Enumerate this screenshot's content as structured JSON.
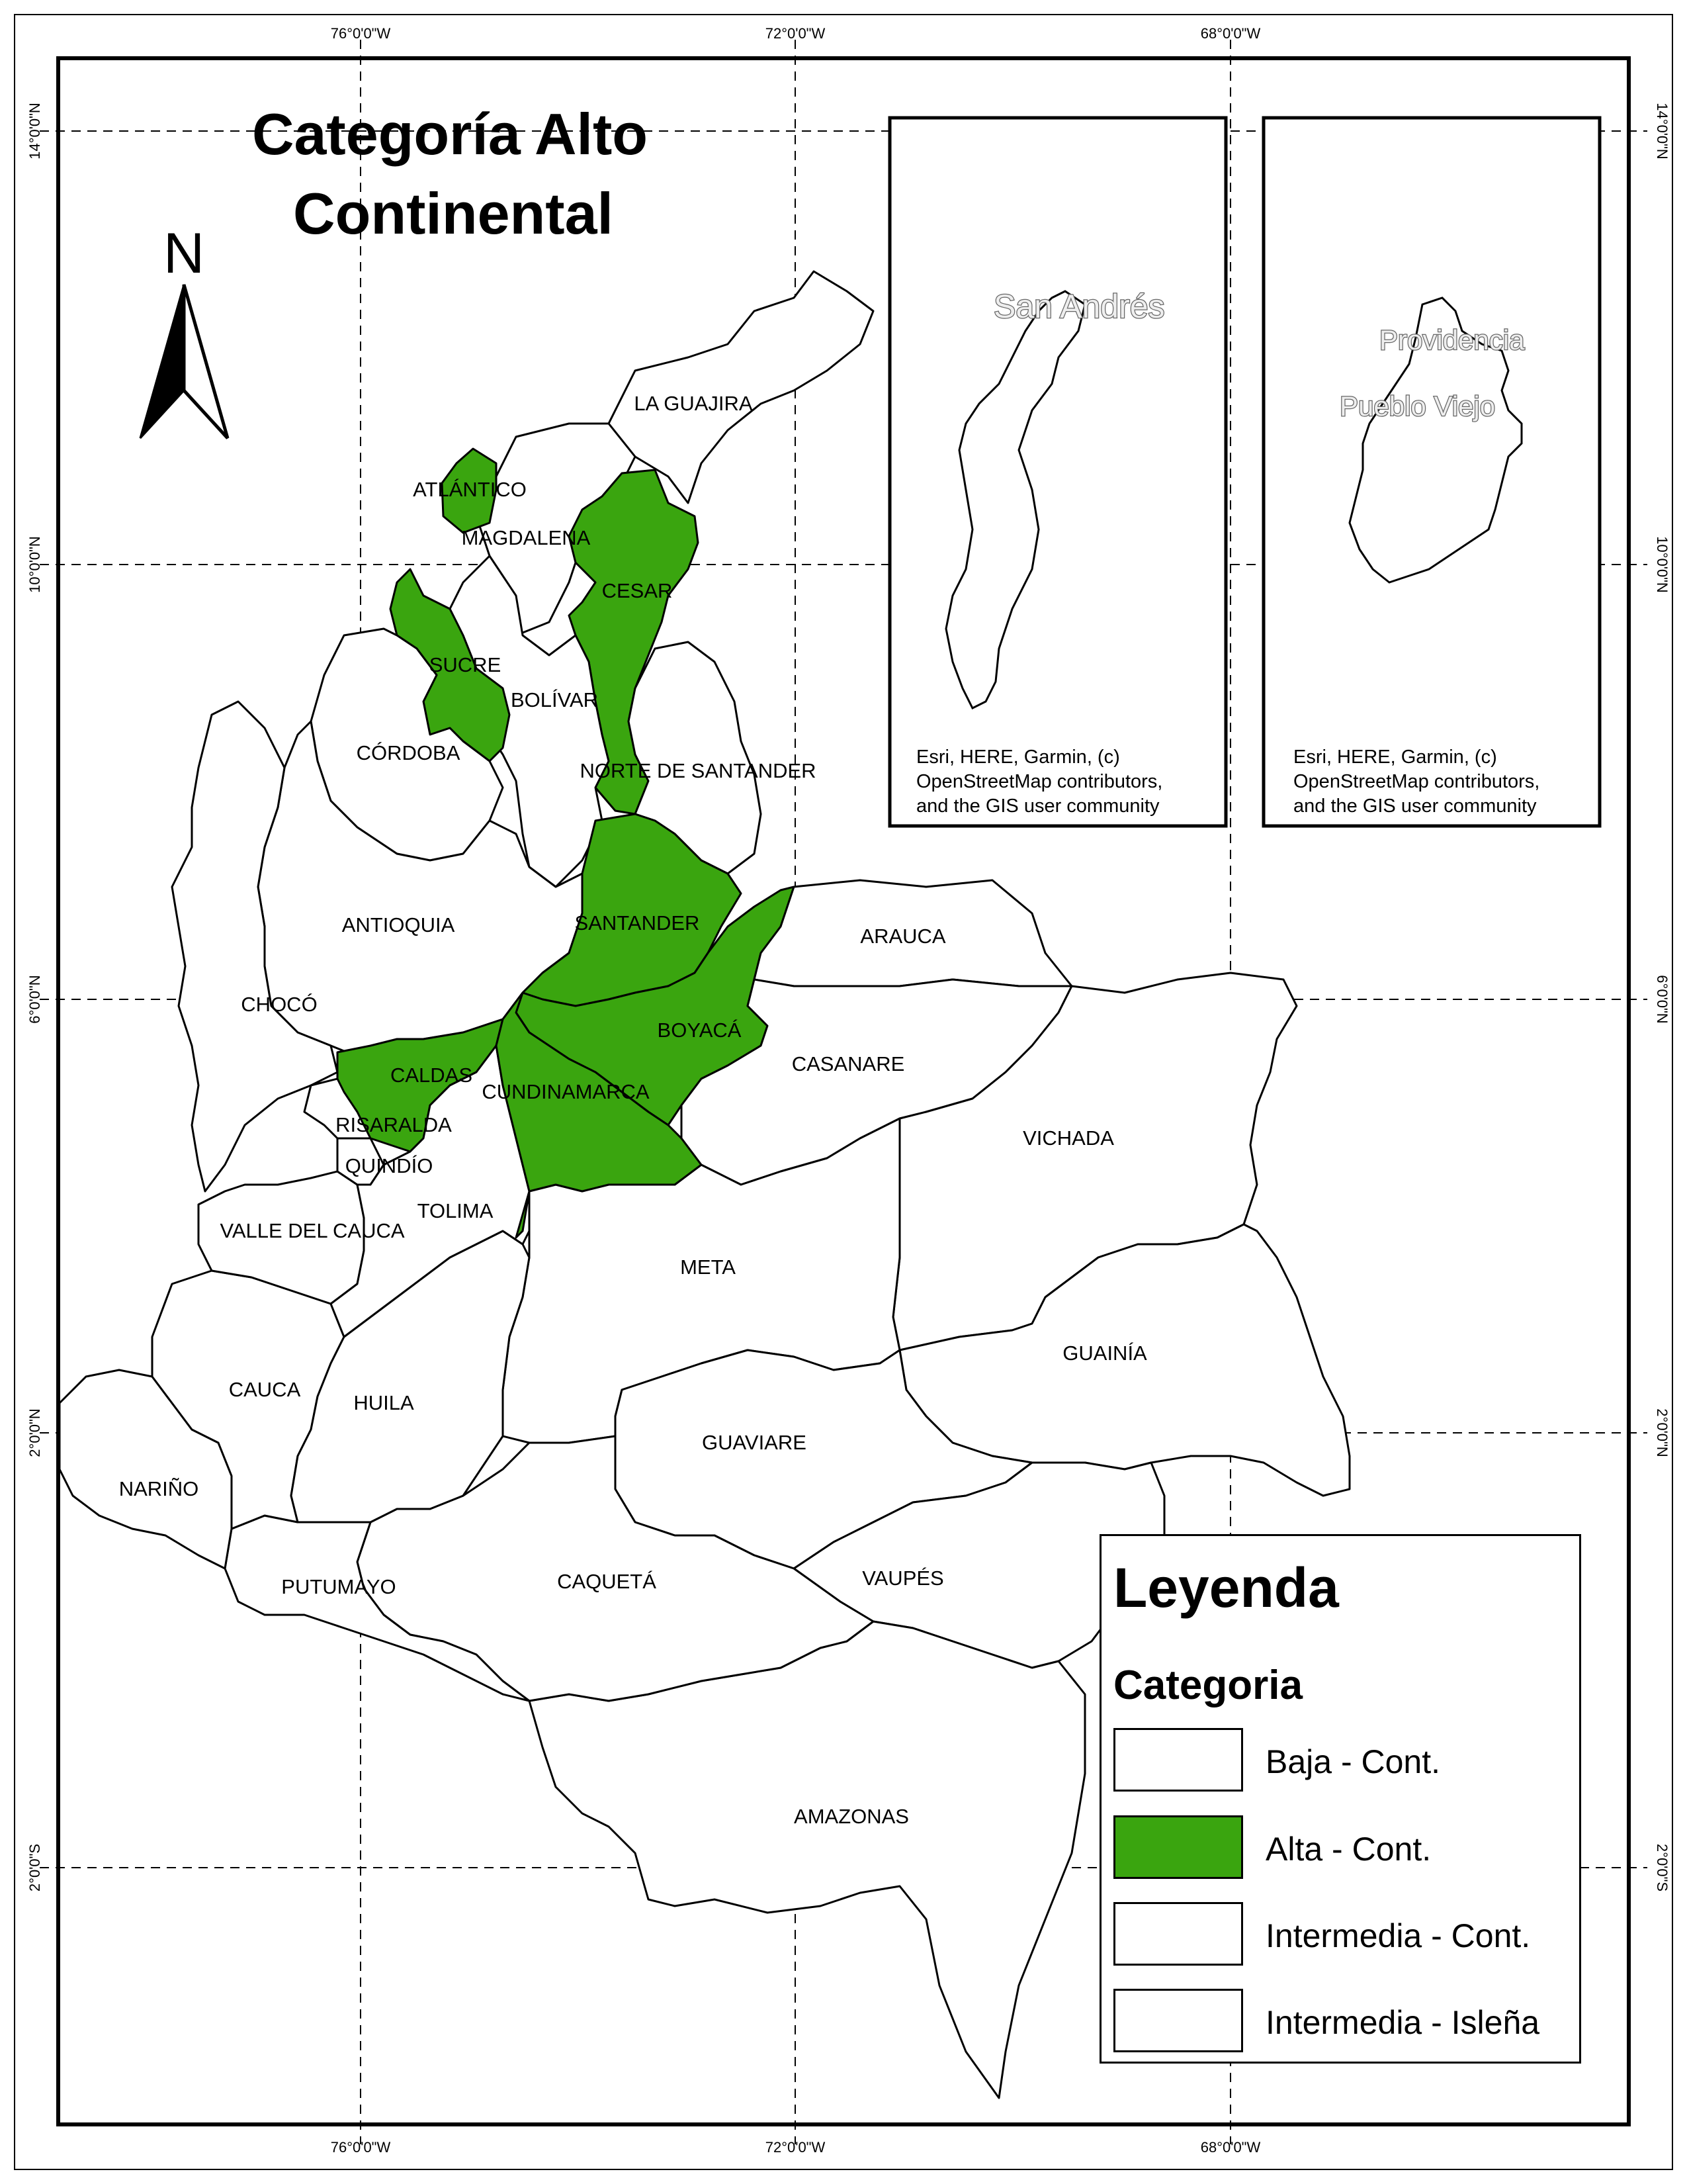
{
  "map": {
    "title_line1": "Categoría Alto",
    "title_line2": "Continental",
    "north_label": "N",
    "longitude_ticks": [
      "76°0'0\"W",
      "72°0'0\"W",
      "68°0'0\"W"
    ],
    "latitude_ticks": [
      "14°0'0\"N",
      "10°0'0\"N",
      "6°0'0\"N",
      "2°0'0\"N",
      "2°0'0\"S"
    ],
    "highlight_color": "#3aa50f",
    "departments": {
      "la_guajira": "LA GUAJIRA",
      "atlantico": "ATLÁNTICO",
      "magdalena": "MAGDALENA",
      "cesar": "CESAR",
      "sucre": "SUCRE",
      "bolivar": "BOLÍVAR",
      "cordoba": "CÓRDOBA",
      "norte_santander": "NORTE DE SANTANDER",
      "antioquia": "ANTIOQUIA",
      "santander": "SANTANDER",
      "arauca": "ARAUCA",
      "choco": "CHOCÓ",
      "boyaca": "BOYACÁ",
      "caldas": "CALDAS",
      "cundinamarca": "CUNDINAMARCA",
      "casanare": "CASANARE",
      "risaralda": "RISARALDA",
      "quindio": "QUINDÍO",
      "vichada": "VICHADA",
      "tolima": "TOLIMA",
      "valle": "VALLE DEL CAUCA",
      "meta": "META",
      "guainia": "GUAINÍA",
      "cauca": "CAUCA",
      "huila": "HUILA",
      "guaviare": "GUAVIARE",
      "narino": "NARIÑO",
      "putumayo": "PUTUMAYO",
      "caqueta": "CAQUETÁ",
      "vaupes": "VAUPÉS",
      "amazonas": "AMAZONAS"
    }
  },
  "insets": {
    "san_andres": {
      "label": "San Andrés",
      "credit_1": "Esri, HERE, Garmin, (c)",
      "credit_2": "OpenStreetMap contributors,",
      "credit_3": "and the GIS user community"
    },
    "providencia": {
      "label_1": "Providencia",
      "label_2": "Pueblo Viejo",
      "credit_1": "Esri, HERE, Garmin, (c)",
      "credit_2": "OpenStreetMap contributors,",
      "credit_3": "and the GIS user community"
    }
  },
  "legend": {
    "title": "Leyenda",
    "subtitle": "Categoria",
    "items": [
      {
        "label": "Baja - Cont.",
        "color": "#ffffff"
      },
      {
        "label": "Alta - Cont.",
        "color": "#3aa50f"
      },
      {
        "label": "Intermedia - Cont.",
        "color": "#ffffff"
      },
      {
        "label": "Intermedia - Isleña",
        "color": "#ffffff"
      }
    ]
  }
}
